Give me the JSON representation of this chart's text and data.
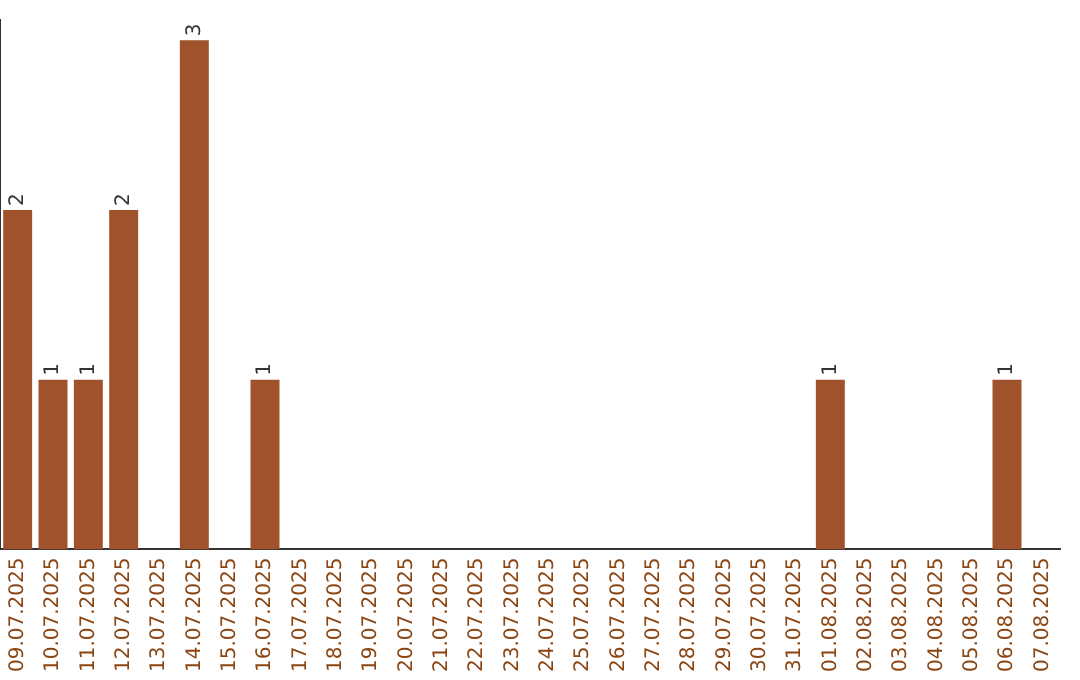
{
  "chart_data": {
    "type": "bar",
    "categories": [
      "09.07.2025",
      "10.07.2025",
      "11.07.2025",
      "12.07.2025",
      "13.07.2025",
      "14.07.2025",
      "15.07.2025",
      "16.07.2025",
      "17.07.2025",
      "18.07.2025",
      "19.07.2025",
      "20.07.2025",
      "21.07.2025",
      "22.07.2025",
      "23.07.2025",
      "24.07.2025",
      "25.07.2025",
      "26.07.2025",
      "27.07.2025",
      "28.07.2025",
      "29.07.2025",
      "30.07.2025",
      "31.07.2025",
      "01.08.2025",
      "02.08.2025",
      "03.08.2025",
      "04.08.2025",
      "05.08.2025",
      "06.08.2025",
      "07.08.2025"
    ],
    "values": [
      2,
      1,
      1,
      2,
      0,
      3,
      0,
      1,
      0,
      0,
      0,
      0,
      0,
      0,
      0,
      0,
      0,
      0,
      0,
      0,
      0,
      0,
      0,
      1,
      0,
      0,
      0,
      0,
      1,
      0
    ],
    "value_labels": [
      "2",
      "1",
      "1",
      "2",
      null,
      "3",
      null,
      "1",
      null,
      null,
      null,
      null,
      null,
      null,
      null,
      null,
      null,
      null,
      null,
      null,
      null,
      null,
      null,
      "1",
      null,
      null,
      null,
      null,
      "1",
      null
    ],
    "color": "#a0522d",
    "ylim": [
      0,
      3.12
    ],
    "tick_labels": "x",
    "grid": false,
    "legend": false
  }
}
